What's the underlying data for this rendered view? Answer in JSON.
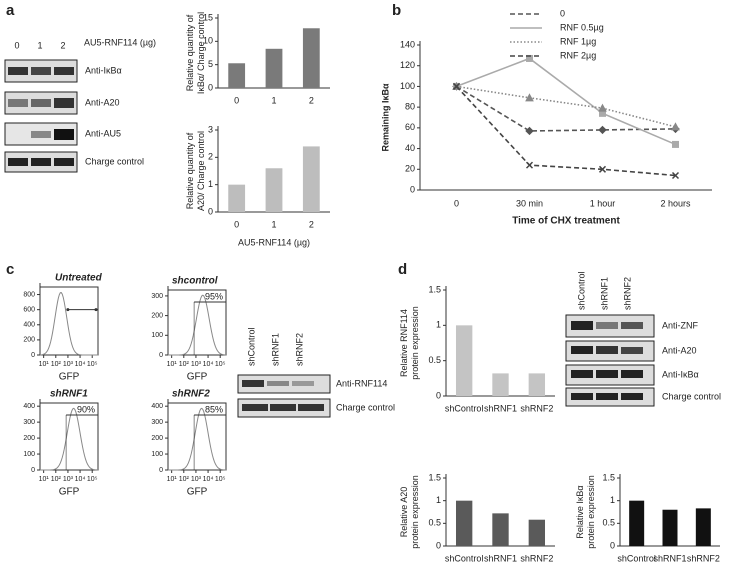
{
  "panels": {
    "a": "a",
    "b": "b",
    "c": "c",
    "d": "d"
  },
  "blot_a": {
    "header": "AU5-RNF114 (µg)",
    "lanes": [
      "0",
      "1",
      "2"
    ],
    "labels": [
      "Anti-IκBα",
      "Anti-A20",
      "Anti-AU5",
      "Charge control"
    ]
  },
  "blot_c": {
    "lanes": [
      "shControl",
      "shRNF1",
      "shRNF2"
    ],
    "labels": [
      "Anti-RNF114",
      "Charge control"
    ]
  },
  "blot_d": {
    "lanes": [
      "shControl",
      "shRNF1",
      "shRNF2"
    ],
    "labels": [
      "Anti-ZNF",
      "Anti-A20",
      "Anti-IκBα",
      "Charge control"
    ]
  },
  "chart_data": [
    {
      "type": "bar",
      "ylabel": [
        "Relative quantity of",
        "IκBα/ Charge control"
      ],
      "categories": [
        "0",
        "1",
        "2"
      ],
      "values": [
        5.3,
        8.4,
        12.8
      ],
      "color": "#7a7a7a",
      "ylim": [
        0,
        15
      ],
      "yticks": [
        0,
        5,
        10,
        15
      ]
    },
    {
      "type": "bar",
      "ylabel": [
        "Relative quantity of",
        "A20/ Charge control"
      ],
      "xlabel": "AU5-RNF114 (µg)",
      "categories": [
        "0",
        "1",
        "2"
      ],
      "values": [
        1,
        1.6,
        2.4
      ],
      "color": "#bdbdbd",
      "ylim": [
        0,
        3
      ],
      "yticks": [
        0,
        1,
        2,
        3
      ]
    },
    {
      "type": "line",
      "ylabel": [
        "Remaining IκBα"
      ],
      "xlabel": "Time of CHX treatment",
      "categories": [
        "0",
        "30 min",
        "1 hour",
        "2 hours"
      ],
      "ylim": [
        0,
        140
      ],
      "yticks": [
        0,
        20,
        40,
        60,
        80,
        100,
        120,
        140
      ],
      "legend": "top",
      "series": [
        {
          "name": "0",
          "color": "#555555",
          "dash": "5,3",
          "marker": "diamond",
          "values": [
            100,
            57,
            58,
            59
          ]
        },
        {
          "name": "RNF 0.5µg",
          "color": "#aaaaaa",
          "dash": "none",
          "marker": "square",
          "values": [
            100,
            127,
            74,
            44
          ]
        },
        {
          "name": "RNF 1µg",
          "color": "#888888",
          "dash": "1.5,2",
          "marker": "triangle",
          "values": [
            100,
            89,
            79,
            61
          ]
        },
        {
          "name": "RNF 2µg",
          "color": "#444444",
          "dash": "5,3",
          "marker": "x",
          "values": [
            100,
            24,
            20,
            14
          ]
        }
      ]
    },
    {
      "type": "flow",
      "title": "Untreated",
      "xlabel": "GFP",
      "log_x": true,
      "xlim": [
        5,
        300000
      ],
      "xticks": [
        {
          "value": 10,
          "label": "10¹"
        },
        {
          "value": 100,
          "label": "10²"
        },
        {
          "value": 1000,
          "label": "10³"
        },
        {
          "value": 10000,
          "label": "10⁴"
        },
        {
          "value": 100000,
          "label": "10⁵"
        }
      ],
      "ylim": [
        0,
        900
      ],
      "yticks": [
        0,
        200,
        400,
        600,
        800
      ]
    },
    {
      "type": "flow",
      "title": "shcontrol",
      "gate": "95%",
      "xlabel": "GFP",
      "log_x": true,
      "xlim": [
        5,
        300000
      ],
      "xticks": [
        {
          "value": 10,
          "label": "10¹"
        },
        {
          "value": 100,
          "label": "10²"
        },
        {
          "value": 1000,
          "label": "10³"
        },
        {
          "value": 10000,
          "label": "10⁴"
        },
        {
          "value": 100000,
          "label": "10⁵"
        }
      ],
      "ylim": [
        0,
        330
      ],
      "yticks": [
        0,
        100,
        200,
        300
      ]
    },
    {
      "type": "flow",
      "title": "shRNF1",
      "gate": "90%",
      "xlabel": "GFP",
      "log_x": true,
      "xlim": [
        5,
        300000
      ],
      "xticks": [
        {
          "value": 10,
          "label": "10¹"
        },
        {
          "value": 100,
          "label": "10²"
        },
        {
          "value": 1000,
          "label": "10³"
        },
        {
          "value": 10000,
          "label": "10⁴"
        },
        {
          "value": 100000,
          "label": "10⁵"
        }
      ],
      "ylim": [
        0,
        420
      ],
      "yticks": [
        0,
        100,
        200,
        300,
        400
      ]
    },
    {
      "type": "flow",
      "title": "shRNF2",
      "gate": "85%",
      "xlabel": "GFP",
      "log_x": true,
      "xlim": [
        5,
        300000
      ],
      "xticks": [
        {
          "value": 10,
          "label": "10¹"
        },
        {
          "value": 100,
          "label": "10²"
        },
        {
          "value": 1000,
          "label": "10³"
        },
        {
          "value": 10000,
          "label": "10⁴"
        },
        {
          "value": 100000,
          "label": "10⁵"
        }
      ],
      "ylim": [
        0,
        420
      ],
      "yticks": [
        0,
        100,
        200,
        300,
        400
      ]
    },
    {
      "type": "bar",
      "ylabel": [
        "Relative RNF114",
        "protein expression"
      ],
      "categories": [
        "shControl",
        "shRNF1",
        "shRNF2"
      ],
      "values": [
        1,
        0.32,
        0.32
      ],
      "color": "#c4c4c4",
      "ylim": [
        0,
        1.5
      ],
      "yticks": [
        0,
        0.5,
        1,
        1.5
      ]
    },
    {
      "type": "bar",
      "ylabel": [
        "Relative A20",
        "protein expression"
      ],
      "categories": [
        "shControl",
        "shRNF1",
        "shRNF2"
      ],
      "values": [
        1,
        0.72,
        0.58
      ],
      "color": "#5a5a5a",
      "ylim": [
        0,
        1.5
      ],
      "yticks": [
        0,
        0.5,
        1,
        1.5
      ]
    },
    {
      "type": "bar",
      "ylabel": [
        "Relative IκBα",
        "protein expression"
      ],
      "categories": [
        "shControl",
        "shRNF1",
        "shRNF2"
      ],
      "values": [
        1,
        0.8,
        0.83
      ],
      "color": "#111111",
      "ylim": [
        0,
        1.5
      ],
      "yticks": [
        0,
        0.5,
        1,
        1.5
      ]
    }
  ]
}
